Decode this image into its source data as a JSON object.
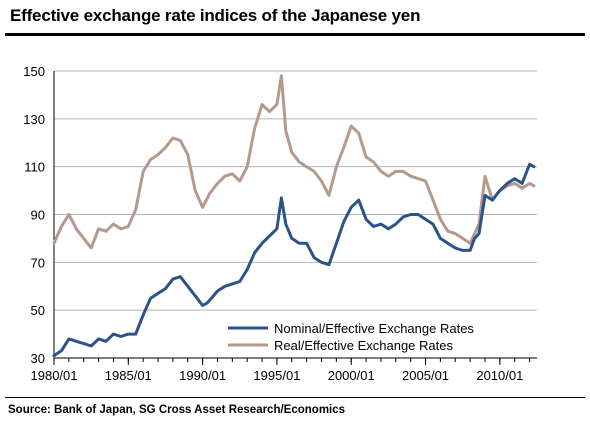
{
  "title": "Effective exchange rate indices of the Japanese yen",
  "source": "Source: Bank of Japan, SG Cross Asset Research/Economics",
  "colors": {
    "nominal": "#2c5287",
    "real": "#b49a8a",
    "grid": "#b5b5b5",
    "axis": "#000000"
  },
  "chart_data": {
    "type": "line",
    "title": "Effective exchange rate indices of the Japanese yen",
    "xlabel": "",
    "ylabel": "",
    "xlim": [
      1980.0,
      2012.5
    ],
    "ylim": [
      30,
      150
    ],
    "yticks": [
      30,
      50,
      70,
      90,
      110,
      130,
      150
    ],
    "xtick_labels": [
      "1980/01",
      "1985/01",
      "1990/01",
      "1995/01",
      "2000/01",
      "2005/01",
      "2010/01"
    ],
    "xtick_values": [
      1980,
      1985,
      1990,
      1995,
      2000,
      2005,
      2010
    ],
    "grid": true,
    "legend": "bottom-right",
    "series": [
      {
        "name": "Nominal/Effective Exchange Rates",
        "color": "#2c5287",
        "x": [
          1980.0,
          1980.5,
          1981.0,
          1981.5,
          1982.0,
          1982.5,
          1983.0,
          1983.5,
          1984.0,
          1984.5,
          1985.0,
          1985.5,
          1986.0,
          1986.5,
          1987.0,
          1987.5,
          1988.0,
          1988.5,
          1989.0,
          1989.5,
          1990.0,
          1990.3,
          1990.6,
          1991.0,
          1991.5,
          1992.0,
          1992.5,
          1993.0,
          1993.5,
          1994.0,
          1994.5,
          1995.0,
          1995.3,
          1995.6,
          1996.0,
          1996.5,
          1997.0,
          1997.5,
          1998.0,
          1998.5,
          1999.0,
          1999.5,
          2000.0,
          2000.5,
          2001.0,
          2001.5,
          2002.0,
          2002.5,
          2003.0,
          2003.5,
          2004.0,
          2004.5,
          2005.0,
          2005.5,
          2006.0,
          2006.5,
          2007.0,
          2007.5,
          2008.0,
          2008.3,
          2008.6,
          2009.0,
          2009.5,
          2010.0,
          2010.5,
          2011.0,
          2011.5,
          2012.0,
          2012.3
        ],
        "y": [
          31,
          33,
          38,
          37,
          36,
          35,
          38,
          37,
          40,
          39,
          40,
          40,
          48,
          55,
          57,
          59,
          63,
          64,
          60,
          56,
          52,
          53,
          55,
          58,
          60,
          61,
          62,
          67,
          74,
          78,
          81,
          84,
          97,
          86,
          80,
          78,
          78,
          72,
          70,
          69,
          78,
          87,
          93,
          96,
          88,
          85,
          86,
          84,
          86,
          89,
          90,
          90,
          88,
          86,
          80,
          78,
          76,
          75,
          75,
          80,
          82,
          98,
          96,
          100,
          103,
          105,
          103,
          111,
          110
        ]
      },
      {
        "name": "Real/Effective Exchange Rates",
        "color": "#b49a8a",
        "x": [
          1980.0,
          1980.5,
          1981.0,
          1981.5,
          1982.0,
          1982.5,
          1983.0,
          1983.5,
          1984.0,
          1984.5,
          1985.0,
          1985.5,
          1986.0,
          1986.5,
          1987.0,
          1987.5,
          1988.0,
          1988.5,
          1989.0,
          1989.5,
          1990.0,
          1990.5,
          1991.0,
          1991.5,
          1992.0,
          1992.5,
          1993.0,
          1993.5,
          1994.0,
          1994.5,
          1995.0,
          1995.3,
          1995.6,
          1996.0,
          1996.5,
          1997.0,
          1997.5,
          1998.0,
          1998.5,
          1999.0,
          1999.5,
          2000.0,
          2000.5,
          2001.0,
          2001.5,
          2002.0,
          2002.5,
          2003.0,
          2003.5,
          2004.0,
          2004.5,
          2005.0,
          2005.5,
          2006.0,
          2006.5,
          2007.0,
          2007.5,
          2008.0,
          2008.3,
          2008.6,
          2009.0,
          2009.5,
          2010.0,
          2010.5,
          2011.0,
          2011.5,
          2012.0,
          2012.3
        ],
        "y": [
          78,
          85,
          90,
          84,
          80,
          76,
          84,
          83,
          86,
          84,
          85,
          92,
          108,
          113,
          115,
          118,
          122,
          121,
          115,
          100,
          93,
          99,
          103,
          106,
          107,
          104,
          110,
          126,
          136,
          133,
          136,
          148,
          125,
          116,
          112,
          110,
          108,
          104,
          98,
          110,
          118,
          127,
          124,
          114,
          112,
          108,
          106,
          108,
          108,
          106,
          105,
          104,
          96,
          88,
          83,
          82,
          80,
          78,
          82,
          86,
          106,
          96,
          100,
          102,
          103,
          101,
          103,
          102
        ]
      }
    ]
  }
}
